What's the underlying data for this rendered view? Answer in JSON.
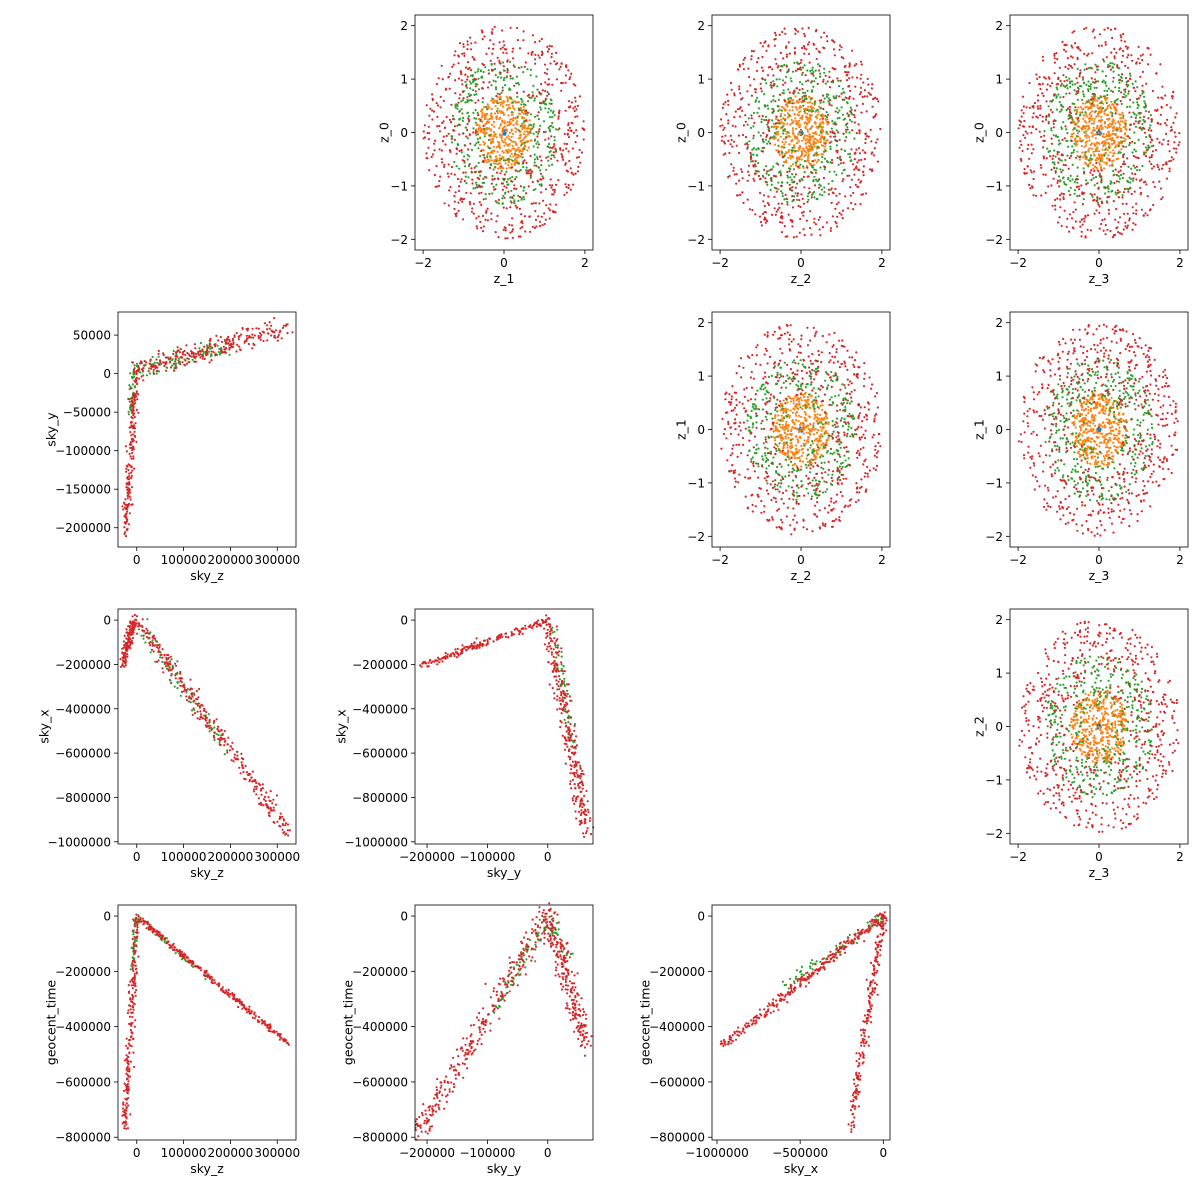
{
  "figure": {
    "colors": {
      "blue": "#1f77b4",
      "orange": "#ff7f0e",
      "green": "#2ca02c",
      "red": "#d62728",
      "axis": "#000000"
    }
  },
  "chart_data": [
    {
      "type": "scatter",
      "row": 0,
      "col": 1,
      "xlabel": "z_1",
      "ylabel": "z_0",
      "xlim": [
        -2.2,
        2.2
      ],
      "ylim": [
        -2.2,
        2.2
      ],
      "xticks": [
        -2,
        0,
        2
      ],
      "yticks": [
        -2,
        -1,
        0,
        1,
        2
      ],
      "xtick_labels": [
        "−2",
        "0",
        "2"
      ],
      "ytick_labels": [
        "−2",
        "−1",
        "0",
        "1",
        "2"
      ],
      "shape": "rings",
      "series": [
        {
          "color": "blue",
          "radius": [
            0,
            0.05
          ],
          "count": 15
        },
        {
          "color": "orange",
          "radius": [
            0,
            0.7
          ],
          "count": 420
        },
        {
          "color": "green",
          "radius": [
            0.3,
            1.35
          ],
          "count": 380
        },
        {
          "color": "red",
          "radius": [
            0.5,
            2.0
          ],
          "count": 620
        }
      ]
    },
    {
      "type": "scatter",
      "row": 0,
      "col": 2,
      "xlabel": "z_2",
      "ylabel": "z_0",
      "xlim": [
        -2.2,
        2.2
      ],
      "ylim": [
        -2.2,
        2.2
      ],
      "xticks": [
        -2,
        0,
        2
      ],
      "yticks": [
        -2,
        -1,
        0,
        1,
        2
      ],
      "xtick_labels": [
        "−2",
        "0",
        "2"
      ],
      "ytick_labels": [
        "−2",
        "−1",
        "0",
        "1",
        "2"
      ],
      "shape": "rings",
      "series": [
        {
          "color": "blue",
          "radius": [
            0,
            0.05
          ],
          "count": 15
        },
        {
          "color": "orange",
          "radius": [
            0,
            0.7
          ],
          "count": 420
        },
        {
          "color": "green",
          "radius": [
            0.3,
            1.35
          ],
          "count": 380
        },
        {
          "color": "red",
          "radius": [
            0.5,
            2.0
          ],
          "count": 620
        }
      ]
    },
    {
      "type": "scatter",
      "row": 0,
      "col": 3,
      "xlabel": "z_3",
      "ylabel": "z_0",
      "xlim": [
        -2.2,
        2.2
      ],
      "ylim": [
        -2.2,
        2.2
      ],
      "xticks": [
        -2,
        0,
        2
      ],
      "yticks": [
        -2,
        -1,
        0,
        1,
        2
      ],
      "xtick_labels": [
        "−2",
        "0",
        "2"
      ],
      "ytick_labels": [
        "−2",
        "−1",
        "0",
        "1",
        "2"
      ],
      "shape": "rings",
      "series": [
        {
          "color": "blue",
          "radius": [
            0,
            0.05
          ],
          "count": 15
        },
        {
          "color": "orange",
          "radius": [
            0,
            0.7
          ],
          "count": 420
        },
        {
          "color": "green",
          "radius": [
            0.3,
            1.35
          ],
          "count": 380
        },
        {
          "color": "red",
          "radius": [
            0.5,
            2.0
          ],
          "count": 620
        }
      ]
    },
    {
      "type": "scatter",
      "row": 1,
      "col": 0,
      "xlabel": "sky_z",
      "ylabel": "sky_y",
      "xlim": [
        -40000,
        340000
      ],
      "ylim": [
        -225000,
        80000
      ],
      "xticks": [
        0,
        100000,
        200000,
        300000
      ],
      "yticks": [
        -200000,
        -150000,
        -100000,
        -50000,
        0,
        50000
      ],
      "xtick_labels": [
        "0",
        "100000",
        "200000",
        "300000"
      ],
      "ytick_labels": [
        "−200000",
        "−150000",
        "−100000",
        "−50000",
        "0",
        "50000"
      ],
      "shape": "segments",
      "series": [
        {
          "color": "green",
          "segments": [
            {
              "from": [
                -5000,
                0
              ],
              "to": [
                180000,
                35000
              ],
              "count": 90,
              "spread": [
                12000,
                6000
              ]
            },
            {
              "from": [
                -5000,
                5000
              ],
              "to": [
                -15000,
                -60000
              ],
              "count": 40,
              "spread": [
                3000,
                6000
              ]
            }
          ]
        },
        {
          "color": "red",
          "segments": [
            {
              "from": [
                0,
                5000
              ],
              "to": [
                320000,
                60000
              ],
              "count": 260,
              "spread": [
                8000,
                7000
              ]
            },
            {
              "from": [
                0,
                5000
              ],
              "to": [
                -25000,
                -210000
              ],
              "count": 200,
              "spread": [
                4000,
                5000
              ]
            }
          ]
        }
      ]
    },
    {
      "type": "scatter",
      "row": 1,
      "col": 2,
      "xlabel": "z_2",
      "ylabel": "z_1",
      "xlim": [
        -2.2,
        2.2
      ],
      "ylim": [
        -2.2,
        2.2
      ],
      "xticks": [
        -2,
        0,
        2
      ],
      "yticks": [
        -2,
        -1,
        0,
        1,
        2
      ],
      "xtick_labels": [
        "−2",
        "0",
        "2"
      ],
      "ytick_labels": [
        "−2",
        "−1",
        "0",
        "1",
        "2"
      ],
      "shape": "rings",
      "series": [
        {
          "color": "blue",
          "radius": [
            0,
            0.05
          ],
          "count": 15
        },
        {
          "color": "orange",
          "radius": [
            0,
            0.7
          ],
          "count": 420
        },
        {
          "color": "green",
          "radius": [
            0.3,
            1.35
          ],
          "count": 380
        },
        {
          "color": "red",
          "radius": [
            0.5,
            2.0
          ],
          "count": 620
        }
      ]
    },
    {
      "type": "scatter",
      "row": 1,
      "col": 3,
      "xlabel": "z_3",
      "ylabel": "z_1",
      "xlim": [
        -2.2,
        2.2
      ],
      "ylim": [
        -2.2,
        2.2
      ],
      "xticks": [
        -2,
        0,
        2
      ],
      "yticks": [
        -2,
        -1,
        0,
        1,
        2
      ],
      "xtick_labels": [
        "−2",
        "0",
        "2"
      ],
      "ytick_labels": [
        "−2",
        "−1",
        "0",
        "1",
        "2"
      ],
      "shape": "rings",
      "series": [
        {
          "color": "blue",
          "radius": [
            0,
            0.05
          ],
          "count": 15
        },
        {
          "color": "orange",
          "radius": [
            0,
            0.7
          ],
          "count": 420
        },
        {
          "color": "green",
          "radius": [
            0.3,
            1.35
          ],
          "count": 380
        },
        {
          "color": "red",
          "radius": [
            0.5,
            2.0
          ],
          "count": 620
        }
      ]
    },
    {
      "type": "scatter",
      "row": 2,
      "col": 0,
      "xlabel": "sky_z",
      "ylabel": "sky_x",
      "xlim": [
        -40000,
        340000
      ],
      "ylim": [
        -1010000,
        50000
      ],
      "xticks": [
        0,
        100000,
        200000,
        300000
      ],
      "yticks": [
        -1000000,
        -800000,
        -600000,
        -400000,
        -200000,
        0
      ],
      "xtick_labels": [
        "0",
        "100000",
        "200000",
        "300000"
      ],
      "ytick_labels": [
        "−1000000",
        "−800000",
        "−600000",
        "−400000",
        "−200000",
        "0"
      ],
      "shape": "segments",
      "series": [
        {
          "color": "green",
          "segments": [
            {
              "from": [
                0,
                -10000
              ],
              "to": [
                200000,
                -600000
              ],
              "count": 70,
              "spread": [
                8000,
                20000
              ]
            }
          ]
        },
        {
          "color": "red",
          "segments": [
            {
              "from": [
                0,
                0
              ],
              "to": [
                325000,
                -960000
              ],
              "count": 320,
              "spread": [
                7000,
                18000
              ]
            },
            {
              "from": [
                -5000,
                0
              ],
              "to": [
                -30000,
                -200000
              ],
              "count": 160,
              "spread": [
                4000,
                15000
              ]
            }
          ]
        }
      ]
    },
    {
      "type": "scatter",
      "row": 2,
      "col": 1,
      "xlabel": "sky_y",
      "ylabel": "sky_x",
      "xlim": [
        -220000,
        75000
      ],
      "ylim": [
        -1010000,
        50000
      ],
      "xticks": [
        -200000,
        -100000,
        0
      ],
      "yticks": [
        -1000000,
        -800000,
        -600000,
        -400000,
        -200000,
        0
      ],
      "xtick_labels": [
        "−200000",
        "−100000",
        "0"
      ],
      "ytick_labels": [
        "−1000000",
        "−800000",
        "−600000",
        "−400000",
        "−200000",
        "0"
      ],
      "shape": "segments",
      "series": [
        {
          "color": "green",
          "segments": [
            {
              "from": [
                5000,
                -10000
              ],
              "to": [
                45000,
                -600000
              ],
              "count": 60,
              "spread": [
                5000,
                20000
              ]
            }
          ]
        },
        {
          "color": "red",
          "segments": [
            {
              "from": [
                0,
                0
              ],
              "to": [
                65000,
                -960000
              ],
              "count": 300,
              "spread": [
                6000,
                20000
              ]
            },
            {
              "from": [
                0,
                0
              ],
              "to": [
                -210000,
                -205000
              ],
              "count": 180,
              "spread": [
                3000,
                8000
              ]
            }
          ]
        }
      ]
    },
    {
      "type": "scatter",
      "row": 2,
      "col": 3,
      "xlabel": "z_3",
      "ylabel": "z_2",
      "xlim": [
        -2.2,
        2.2
      ],
      "ylim": [
        -2.2,
        2.2
      ],
      "xticks": [
        -2,
        0,
        2
      ],
      "yticks": [
        -2,
        -1,
        0,
        1,
        2
      ],
      "xtick_labels": [
        "−2",
        "0",
        "2"
      ],
      "ytick_labels": [
        "−2",
        "−1",
        "0",
        "1",
        "2"
      ],
      "shape": "rings",
      "series": [
        {
          "color": "blue",
          "radius": [
            0,
            0.05
          ],
          "count": 15
        },
        {
          "color": "orange",
          "radius": [
            0,
            0.7
          ],
          "count": 420
        },
        {
          "color": "green",
          "radius": [
            0.3,
            1.35
          ],
          "count": 380
        },
        {
          "color": "red",
          "radius": [
            0.5,
            2.0
          ],
          "count": 620
        }
      ]
    },
    {
      "type": "scatter",
      "row": 3,
      "col": 0,
      "xlabel": "sky_z",
      "ylabel": "geocent_time",
      "xlim": [
        -40000,
        340000
      ],
      "ylim": [
        -810000,
        40000
      ],
      "xticks": [
        0,
        100000,
        200000,
        300000
      ],
      "yticks": [
        -800000,
        -600000,
        -400000,
        -200000,
        0
      ],
      "xtick_labels": [
        "0",
        "100000",
        "200000",
        "300000"
      ],
      "ytick_labels": [
        "−800000",
        "−600000",
        "−400000",
        "−200000",
        "0"
      ],
      "shape": "segments",
      "series": [
        {
          "color": "green",
          "segments": [
            {
              "from": [
                0,
                -5000
              ],
              "to": [
                -10000,
                -200000
              ],
              "count": 40,
              "spread": [
                3000,
                10000
              ]
            },
            {
              "from": [
                0,
                -5000
              ],
              "to": [
                150000,
                -220000
              ],
              "count": 50,
              "spread": [
                3000,
                8000
              ]
            }
          ]
        },
        {
          "color": "red",
          "segments": [
            {
              "from": [
                0,
                0
              ],
              "to": [
                325000,
                -465000
              ],
              "count": 300,
              "spread": [
                2500,
                5000
              ]
            },
            {
              "from": [
                0,
                0
              ],
              "to": [
                -25000,
                -770000
              ],
              "count": 220,
              "spread": [
                4000,
                10000
              ]
            }
          ]
        }
      ]
    },
    {
      "type": "scatter",
      "row": 3,
      "col": 1,
      "xlabel": "sky_y",
      "ylabel": "geocent_time",
      "xlim": [
        -220000,
        75000
      ],
      "ylim": [
        -810000,
        40000
      ],
      "xticks": [
        -200000,
        -100000,
        0
      ],
      "yticks": [
        -800000,
        -600000,
        -400000,
        -200000,
        0
      ],
      "xtick_labels": [
        "−200000",
        "−100000",
        "0"
      ],
      "ytick_labels": [
        "−800000",
        "−600000",
        "−400000",
        "−200000",
        "0"
      ],
      "shape": "segments",
      "series": [
        {
          "color": "green",
          "segments": [
            {
              "from": [
                0,
                -5000
              ],
              "to": [
                -90000,
                -350000
              ],
              "count": 70,
              "spread": [
                6000,
                15000
              ]
            },
            {
              "from": [
                0,
                -5000
              ],
              "to": [
                30000,
                -150000
              ],
              "count": 30,
              "spread": [
                5000,
                10000
              ]
            }
          ]
        },
        {
          "color": "red",
          "segments": [
            {
              "from": [
                0,
                0
              ],
              "to": [
                -215000,
                -780000
              ],
              "count": 300,
              "spread": [
                7000,
                22000
              ]
            },
            {
              "from": [
                0,
                0
              ],
              "to": [
                65000,
                -460000
              ],
              "count": 240,
              "spread": [
                7000,
                25000
              ]
            }
          ]
        }
      ]
    },
    {
      "type": "scatter",
      "row": 3,
      "col": 2,
      "xlabel": "sky_x",
      "ylabel": "geocent_time",
      "xlim": [
        -1030000,
        40000
      ],
      "ylim": [
        -810000,
        40000
      ],
      "xticks": [
        -1000000,
        -500000,
        0
      ],
      "yticks": [
        -800000,
        -600000,
        -400000,
        -200000,
        0
      ],
      "xtick_labels": [
        "−1000000",
        "−500000",
        "0"
      ],
      "ytick_labels": [
        "−800000",
        "−600000",
        "−400000",
        "−200000",
        "0"
      ],
      "shape": "segments",
      "series": [
        {
          "color": "green",
          "segments": [
            {
              "from": [
                0,
                -5000
              ],
              "to": [
                -600000,
                -250000
              ],
              "count": 70,
              "spread": [
                15000,
                10000
              ]
            }
          ]
        },
        {
          "color": "red",
          "segments": [
            {
              "from": [
                0,
                0
              ],
              "to": [
                -960000,
                -465000
              ],
              "count": 300,
              "spread": [
                14000,
                9000
              ]
            },
            {
              "from": [
                0,
                0
              ],
              "to": [
                -200000,
                -770000
              ],
              "count": 220,
              "spread": [
                12000,
                12000
              ]
            }
          ]
        }
      ]
    }
  ]
}
